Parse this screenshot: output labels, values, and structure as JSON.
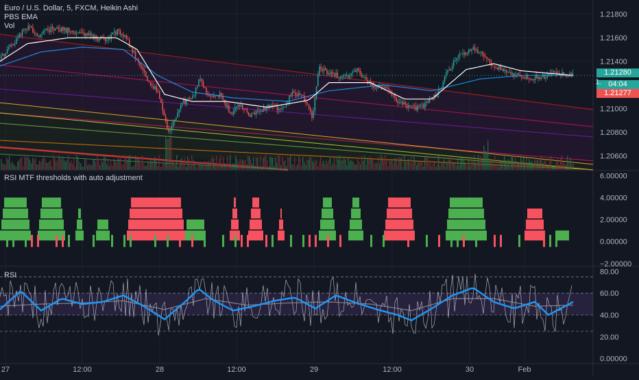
{
  "header": {
    "title": "Euro / U.S. Dollar, 5, FXCM, Heikin Ashi",
    "indicator_1": "PBS EMA",
    "indicator_2": "Vol"
  },
  "price_pane": {
    "y_ticks": [
      "1.21800",
      "1.21600",
      "1.21400",
      "1.21000",
      "1.20800",
      "1.20600"
    ],
    "tag_last_price": "1.21280",
    "tag_countdown": "04:04",
    "tag_bid": "1.21277",
    "tag_partial": "1."
  },
  "mtf_pane": {
    "title": "RSI MTF thresholds with auto adjustment",
    "y_ticks": [
      "6.00000",
      "4.00000",
      "2.00000",
      "0.00000",
      "−2.00000"
    ]
  },
  "rsi_pane": {
    "title": "RSI",
    "y_ticks": [
      "80.00",
      "60.00",
      "40.00",
      "20.00",
      "0.00000"
    ]
  },
  "time_axis": {
    "labels": [
      "27",
      "12:00",
      "28",
      "12:00",
      "29",
      "12:00",
      "30",
      "Feb"
    ]
  },
  "colors": {
    "background": "#131722",
    "bull": "#26a69a",
    "bear": "#ef5350",
    "green_bar": "#4caf50",
    "red_bar": "#f7525f",
    "ema_fast": "#ffffff",
    "ema_slow": "#2962ff",
    "rsi_line": "#2196f3",
    "rsi_band": "#7e57c2"
  },
  "chart_data": [
    {
      "type": "candlestick",
      "title": "Euro / U.S. Dollar, 5, FXCM, Heikin Ashi",
      "ylim": [
        1.2048,
        1.2192
      ],
      "x_labels": [
        "27",
        "12:00",
        "28",
        "12:00",
        "29",
        "12:00",
        "30",
        "Feb"
      ],
      "price_path": [
        [
          0,
          1.2142
        ],
        [
          25,
          1.216
        ],
        [
          40,
          1.217
        ],
        [
          55,
          1.2162
        ],
        [
          75,
          1.2168
        ],
        [
          100,
          1.2166
        ],
        [
          125,
          1.2163
        ],
        [
          150,
          1.2158
        ],
        [
          170,
          1.2165
        ],
        [
          185,
          1.2158
        ],
        [
          200,
          1.214
        ],
        [
          215,
          1.2125
        ],
        [
          230,
          1.2113
        ],
        [
          245,
          1.208
        ],
        [
          255,
          1.209
        ],
        [
          265,
          1.2105
        ],
        [
          280,
          1.2108
        ],
        [
          290,
          1.2125
        ],
        [
          305,
          1.2108
        ],
        [
          320,
          1.2113
        ],
        [
          335,
          1.2096
        ],
        [
          350,
          1.2103
        ],
        [
          365,
          1.2094
        ],
        [
          380,
          1.2098
        ],
        [
          395,
          1.2103
        ],
        [
          410,
          1.2098
        ],
        [
          425,
          1.2113
        ],
        [
          440,
          1.211
        ],
        [
          455,
          1.2093
        ],
        [
          465,
          1.2135
        ],
        [
          480,
          1.213
        ],
        [
          500,
          1.2126
        ],
        [
          520,
          1.2133
        ],
        [
          540,
          1.212
        ],
        [
          560,
          1.2118
        ],
        [
          575,
          1.2108
        ],
        [
          590,
          1.2103
        ],
        [
          605,
          1.21
        ],
        [
          620,
          1.2103
        ],
        [
          640,
          1.2115
        ],
        [
          655,
          1.2135
        ],
        [
          670,
          1.2145
        ],
        [
          690,
          1.2152
        ],
        [
          710,
          1.214
        ],
        [
          730,
          1.2133
        ],
        [
          750,
          1.213
        ],
        [
          770,
          1.2125
        ],
        [
          790,
          1.2127
        ],
        [
          810,
          1.213
        ],
        [
          836,
          1.2128
        ]
      ],
      "ema_fast_path": [
        [
          0,
          1.214
        ],
        [
          40,
          1.2155
        ],
        [
          100,
          1.216
        ],
        [
          170,
          1.216
        ],
        [
          200,
          1.215
        ],
        [
          240,
          1.2112
        ],
        [
          280,
          1.2106
        ],
        [
          330,
          1.2106
        ],
        [
          390,
          1.2101
        ],
        [
          450,
          1.2107
        ],
        [
          480,
          1.2122
        ],
        [
          540,
          1.2122
        ],
        [
          590,
          1.2108
        ],
        [
          630,
          1.2108
        ],
        [
          680,
          1.2133
        ],
        [
          720,
          1.2138
        ],
        [
          760,
          1.2132
        ],
        [
          836,
          1.2128
        ]
      ],
      "ema_slow_path": [
        [
          0,
          1.2136
        ],
        [
          60,
          1.2148
        ],
        [
          120,
          1.2152
        ],
        [
          180,
          1.215
        ],
        [
          230,
          1.2128
        ],
        [
          280,
          1.2114
        ],
        [
          340,
          1.2109
        ],
        [
          420,
          1.2106
        ],
        [
          480,
          1.2115
        ],
        [
          560,
          1.212
        ],
        [
          630,
          1.2115
        ],
        [
          700,
          1.2125
        ],
        [
          760,
          1.2128
        ],
        [
          836,
          1.2128
        ]
      ],
      "last_price": 1.2128,
      "bid": 1.21277
    },
    {
      "type": "bar",
      "title": "RSI MTF thresholds with auto adjustment",
      "ylim": [
        -2.2,
        6.4
      ],
      "groups": [
        {
          "x0": 0,
          "x1": 45,
          "color": "green",
          "levels": 4
        },
        {
          "x0": 55,
          "x1": 95,
          "color": "green",
          "levels": 4
        },
        {
          "x0": 110,
          "x1": 122,
          "color": "green",
          "levels": 3
        },
        {
          "x0": 140,
          "x1": 160,
          "color": "green",
          "levels": 2
        },
        {
          "x0": 185,
          "x1": 270,
          "color": "red",
          "levels": 4
        },
        {
          "x0": 270,
          "x1": 300,
          "color": "green",
          "levels": 2
        },
        {
          "x0": 335,
          "x1": 350,
          "color": "red",
          "levels": 4
        },
        {
          "x0": 362,
          "x1": 384,
          "color": "red",
          "levels": 4
        },
        {
          "x0": 405,
          "x1": 415,
          "color": "red",
          "levels": 3
        },
        {
          "x0": 465,
          "x1": 490,
          "color": "green",
          "levels": 4
        },
        {
          "x0": 508,
          "x1": 530,
          "color": "green",
          "levels": 4
        },
        {
          "x0": 560,
          "x1": 605,
          "color": "red",
          "levels": 4
        },
        {
          "x0": 650,
          "x1": 710,
          "color": "green",
          "levels": 4
        },
        {
          "x0": 765,
          "x1": 795,
          "color": "red",
          "levels": 3
        },
        {
          "x0": 810,
          "x1": 830,
          "color": "green",
          "levels": 1
        }
      ]
    },
    {
      "type": "line",
      "title": "RSI",
      "ylim": [
        -4,
        84
      ],
      "levels": [
        75,
        60,
        40,
        25
      ],
      "series": [
        {
          "values_path": [
            [
              0,
              45
            ],
            [
              30,
              62
            ],
            [
              60,
              44
            ],
            [
              90,
              55
            ],
            [
              120,
              50
            ],
            [
              150,
              52
            ],
            [
              180,
              58
            ],
            [
              210,
              48
            ],
            [
              240,
              36
            ],
            [
              270,
              52
            ],
            [
              290,
              64
            ],
            [
              310,
              54
            ],
            [
              340,
              44
            ],
            [
              370,
              48
            ],
            [
              400,
              53
            ],
            [
              430,
              56
            ],
            [
              460,
              46
            ],
            [
              490,
              58
            ],
            [
              520,
              51
            ],
            [
              550,
              45
            ],
            [
              580,
              40
            ],
            [
              600,
              35
            ],
            [
              630,
              46
            ],
            [
              660,
              58
            ],
            [
              690,
              65
            ],
            [
              720,
              52
            ],
            [
              750,
              46
            ],
            [
              780,
              52
            ],
            [
              800,
              40
            ],
            [
              836,
              52
            ]
          ]
        },
        {
          "values_path": [
            [
              0,
              48
            ],
            [
              60,
              50
            ],
            [
              120,
              51
            ],
            [
              180,
              53
            ],
            [
              240,
              45
            ],
            [
              300,
              55
            ],
            [
              360,
              49
            ],
            [
              420,
              51
            ],
            [
              480,
              52
            ],
            [
              540,
              50
            ],
            [
              600,
              44
            ],
            [
              660,
              55
            ],
            [
              720,
              55
            ],
            [
              780,
              48
            ],
            [
              836,
              49
            ]
          ]
        }
      ]
    }
  ]
}
